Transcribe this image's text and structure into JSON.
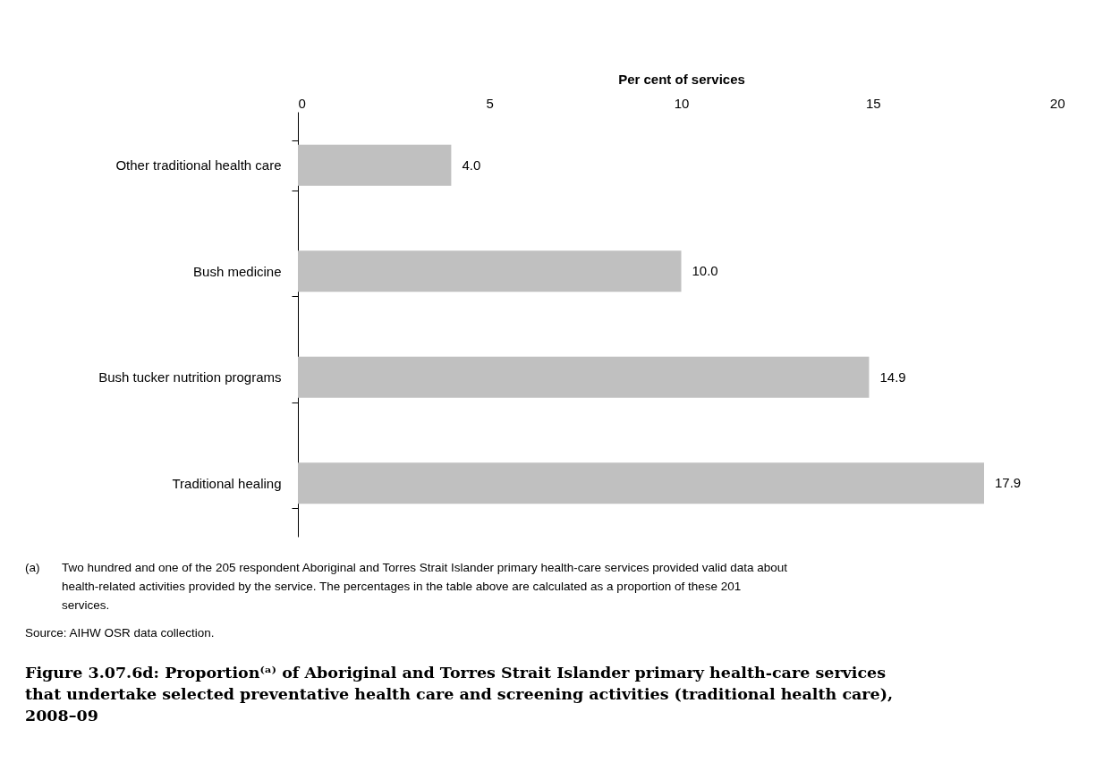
{
  "chart_data": {
    "type": "bar",
    "orientation": "horizontal",
    "title": "Figure 3.07.6d: Proportion⁽ᵃ⁾ of Aboriginal and Torres Strait Islander primary health-care services that undertake selected preventative health care and screening activities (traditional health care), 2008–09",
    "xlabel": "Per cent of services",
    "categories": [
      "Other traditional health care",
      "Bush medicine",
      "Bush tucker nutrition programs",
      "Traditional healing"
    ],
    "values": [
      4.0,
      10.0,
      14.9,
      17.9
    ],
    "value_labels": [
      "4.0",
      "10.0",
      "14.9",
      "17.9"
    ],
    "color": "#c0c0c0",
    "xlim": [
      0,
      20
    ],
    "xticks": [
      0,
      5,
      10,
      15,
      20
    ],
    "grid": false,
    "annotations": [
      "(a)\tTwo hundred and one of the 205 respondent Aboriginal and Torres Strait Islander primary health-care services provided valid data about health-related activities provided by the service. The percentages in the table above are calculated as a proportion of these 201 services.",
      "Source: AIHW OSR data collection."
    ]
  }
}
